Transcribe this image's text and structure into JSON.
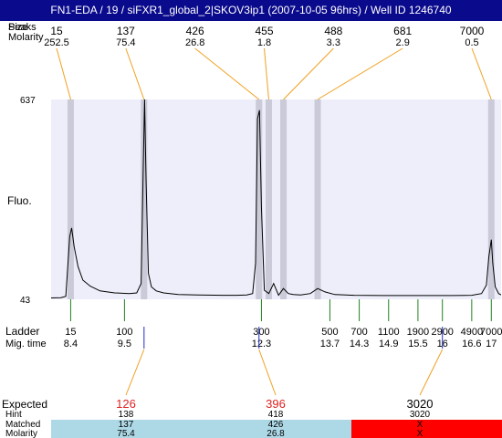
{
  "title": "FN1-EDA / 19 / siFXR1_global_2|SKOV3ip1 (2007-10-05 96hrs) / Well ID 1246740",
  "labels": {
    "peaks_row": "Peaks",
    "size_row": "Size",
    "molarity_row": "Molarity",
    "fluo": "Fluo.",
    "ladder": "Ladder",
    "mig_time": "Mig. time",
    "expected": "Expected",
    "hint": "Hint",
    "matched": "Matched",
    "molarity_bottom": "Molarity"
  },
  "colors": {
    "title_bg": "#0a0a8c",
    "plot_bg": "#eeeefb",
    "band": "#cacad8",
    "leader": "#f0a020",
    "ladder_tick": "#208020",
    "sample_tick": "#2030c0",
    "expected_red": "#e02020",
    "matched_ok": "#add8e6",
    "matched_fail": "#ff0000"
  },
  "chart_data": {
    "type": "line",
    "y_ticks": [
      "637",
      "43"
    ],
    "ylim": [
      43,
      637
    ],
    "xlim": [
      8,
      17.2
    ],
    "peaks": [
      {
        "size": "15",
        "molarity": "252.5",
        "mig_time": 8.4
      },
      {
        "size": "137",
        "molarity": "75.4",
        "mig_time": 9.9
      },
      {
        "size": "426",
        "molarity": "26.8",
        "mig_time": 12.25
      },
      {
        "size": "455",
        "molarity": "1.8",
        "mig_time": 12.45
      },
      {
        "size": "488",
        "molarity": "3.3",
        "mig_time": 12.75
      },
      {
        "size": "681",
        "molarity": "2.9",
        "mig_time": 13.45
      },
      {
        "size": "7000",
        "molarity": "0.5",
        "mig_time": 17.0
      }
    ],
    "trace": {
      "x": [
        8.0,
        8.2,
        8.3,
        8.38,
        8.42,
        8.47,
        8.55,
        8.65,
        8.8,
        9.0,
        9.3,
        9.6,
        9.75,
        9.84,
        9.88,
        9.91,
        9.94,
        9.99,
        10.05,
        10.15,
        10.3,
        10.6,
        11.0,
        11.5,
        11.8,
        12.0,
        12.12,
        12.18,
        12.22,
        12.26,
        12.3,
        12.36,
        12.45,
        12.55,
        12.65,
        12.75,
        12.85,
        12.95,
        13.1,
        13.3,
        13.45,
        13.6,
        13.8,
        14.2,
        14.8,
        15.5,
        16.2,
        16.6,
        16.8,
        16.9,
        16.95,
        17.0,
        17.03,
        17.08,
        17.15,
        17.2
      ],
      "y": [
        47,
        48,
        52,
        230,
        255,
        200,
        140,
        100,
        82,
        68,
        62,
        60,
        62,
        90,
        400,
        637,
        400,
        120,
        80,
        68,
        62,
        57,
        56,
        55,
        55,
        56,
        60,
        150,
        580,
        605,
        320,
        70,
        60,
        90,
        55,
        75,
        60,
        57,
        56,
        60,
        75,
        65,
        57,
        55,
        54,
        54,
        54,
        55,
        60,
        85,
        170,
        220,
        150,
        80,
        60,
        56
      ]
    },
    "ladder": [
      {
        "size": "15",
        "time": "8.4"
      },
      {
        "size": "100",
        "time": "9.5"
      },
      {
        "size": "300",
        "time": "12.3"
      },
      {
        "size": "500",
        "time": "13.7"
      },
      {
        "size": "700",
        "time": "14.3"
      },
      {
        "size": "1100",
        "time": "14.9"
      },
      {
        "size": "1900",
        "time": "15.5"
      },
      {
        "size": "2900",
        "time": "16"
      },
      {
        "size": "4900",
        "time": "16.6"
      },
      {
        "size": "7000",
        "time": "17"
      }
    ],
    "sample_markers": [
      9.9,
      12.25,
      16.0
    ],
    "expected": [
      {
        "value": "126",
        "hint": "138",
        "matched": "137",
        "molarity": "75.4",
        "mig_time": 9.9,
        "color": "red",
        "ok": true
      },
      {
        "value": "396",
        "hint": "418",
        "matched": "426",
        "molarity": "26.8",
        "mig_time": 12.25,
        "color": "red",
        "ok": true
      },
      {
        "value": "3020",
        "hint": "3020",
        "matched": "X",
        "molarity": "X",
        "mig_time": 16.0,
        "color": "black",
        "ok": false
      }
    ]
  }
}
